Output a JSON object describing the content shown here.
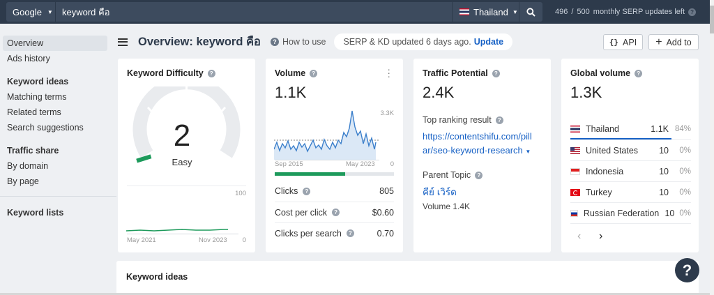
{
  "topbar": {
    "engine": "Google",
    "query": "keyword คือ",
    "country": "Thailand",
    "updates_used": "496",
    "updates_sep": "/",
    "updates_total": "500",
    "updates_label": "monthly SERP updates left"
  },
  "sidebar": {
    "overview": "Overview",
    "ads_history": "Ads history",
    "keyword_ideas": "Keyword ideas",
    "matching_terms": "Matching terms",
    "related_terms": "Related terms",
    "search_suggestions": "Search suggestions",
    "traffic_share": "Traffic share",
    "by_domain": "By domain",
    "by_page": "By page",
    "keyword_lists": "Keyword lists"
  },
  "header": {
    "title": "Overview: keyword คือ",
    "how_to_use": "How to use",
    "serp_status": "SERP & KD updated 6 days ago.",
    "update": "Update",
    "api": "API",
    "add_to": "Add to"
  },
  "kd_card": {
    "title": "Keyword Difficulty",
    "value": "2",
    "label": "Easy",
    "axis_max": "100",
    "axis_min": "0",
    "date_start": "May 2021",
    "date_end": "Nov 2023"
  },
  "volume_card": {
    "title": "Volume",
    "value": "1.1K",
    "axis_max": "3.3K",
    "axis_min": "0",
    "date_start": "Sep 2015",
    "date_end": "May 2023",
    "clicks_label": "Clicks",
    "clicks_value": "805",
    "cpc_label": "Cost per click",
    "cpc_value": "$0.60",
    "cps_label": "Clicks per search",
    "cps_value": "0.70",
    "clicks_share": 0.59
  },
  "traffic_card": {
    "title": "Traffic Potential",
    "value": "2.4K",
    "top_result_label": "Top ranking result",
    "top_result_url": "https://contentshifu.com/pillar/seo-keyword-research",
    "parent_topic_label": "Parent Topic",
    "parent_topic": "คีย์ เวิร์ด",
    "parent_volume": "Volume 1.4K"
  },
  "global_card": {
    "title": "Global volume",
    "value": "1.3K",
    "countries": [
      {
        "name": "Thailand",
        "volume": "1.1K",
        "pct": "84%",
        "flag": "th"
      },
      {
        "name": "United States",
        "volume": "10",
        "pct": "0%",
        "flag": "us"
      },
      {
        "name": "Indonesia",
        "volume": "10",
        "pct": "0%",
        "flag": "id"
      },
      {
        "name": "Turkey",
        "volume": "10",
        "pct": "0%",
        "flag": "tr"
      },
      {
        "name": "Russian Federation",
        "volume": "10",
        "pct": "0%",
        "flag": "ru"
      }
    ]
  },
  "bottom": {
    "keyword_ideas": "Keyword ideas"
  },
  "help": "?",
  "colors": {
    "topbar": "#2d3a4b",
    "accent_blue": "#1761c5",
    "chart_blue": "#3b7fcb",
    "kd_green": "#1d9a5b"
  }
}
